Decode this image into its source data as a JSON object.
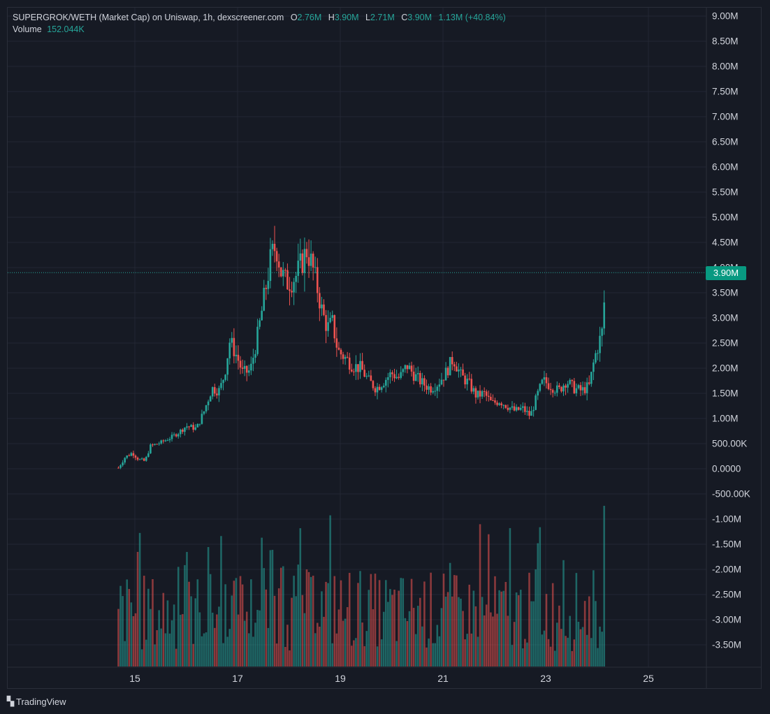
{
  "header": {
    "symbol": "SUPERGROK/WETH (Market Cap) on Uniswap, 1h, dexscreener.com",
    "o_label": "O",
    "o_value": "2.76M",
    "h_label": "H",
    "h_value": "3.90M",
    "l_label": "L",
    "l_value": "2.71M",
    "c_label": "C",
    "c_value": "3.90M",
    "change": "1.13M (+40.84%)",
    "volume_label": "Volume",
    "volume_value": "152.044K"
  },
  "price_tag": "3.90M",
  "footer": {
    "brand": "TradingView"
  },
  "colors": {
    "up": "#26a69a",
    "down": "#ef5350",
    "bg": "#161a24",
    "grid": "#232733",
    "text": "#d1d4dc",
    "tag": "#089981"
  },
  "chart_data": {
    "type": "candlestick",
    "x_ticks": [
      "15",
      "17",
      "19",
      "21",
      "23",
      "25"
    ],
    "y_ticks": [
      "9.00M",
      "8.50M",
      "8.00M",
      "7.50M",
      "7.00M",
      "6.50M",
      "6.00M",
      "5.50M",
      "5.00M",
      "4.50M",
      "4.00M",
      "3.50M",
      "3.00M",
      "2.50M",
      "2.00M",
      "1.50M",
      "1.00M",
      "500.00K",
      "0.0000",
      "-500.00K",
      "-1.00M",
      "-1.50M",
      "-2.00M",
      "-2.50M",
      "-3.00M",
      "-3.50M"
    ],
    "y_values": [
      9.0,
      8.5,
      8.0,
      7.5,
      7.0,
      6.5,
      6.0,
      5.5,
      5.0,
      4.5,
      4.0,
      3.5,
      3.0,
      2.5,
      2.0,
      1.5,
      1.0,
      0.5,
      0.0,
      -0.5,
      -1.0,
      -1.5,
      -2.0,
      -2.5,
      -3.0,
      -3.5
    ],
    "x_domain": [
      14.5,
      25.5
    ],
    "y_domain": [
      -3.9,
      9.2
    ],
    "last_price": 3.9,
    "close_path": [
      [
        14.68,
        0.02
      ],
      [
        14.8,
        0.22
      ],
      [
        14.95,
        0.32
      ],
      [
        15.08,
        0.18
      ],
      [
        15.2,
        0.15
      ],
      [
        15.3,
        0.45
      ],
      [
        15.5,
        0.52
      ],
      [
        15.7,
        0.62
      ],
      [
        15.85,
        0.72
      ],
      [
        16.0,
        0.85
      ],
      [
        16.2,
        0.8
      ],
      [
        16.35,
        1.15
      ],
      [
        16.5,
        1.6
      ],
      [
        16.65,
        1.55
      ],
      [
        16.75,
        1.9
      ],
      [
        16.85,
        2.55
      ],
      [
        17.0,
        2.2
      ],
      [
        17.1,
        1.9
      ],
      [
        17.25,
        1.95
      ],
      [
        17.4,
        2.7
      ],
      [
        17.55,
        3.6
      ],
      [
        17.65,
        4.2
      ],
      [
        17.75,
        4.45
      ],
      [
        17.85,
        3.9
      ],
      [
        17.95,
        3.7
      ],
      [
        18.05,
        3.75
      ],
      [
        18.15,
        3.85
      ],
      [
        18.25,
        4.1
      ],
      [
        18.35,
        4.35
      ],
      [
        18.45,
        4.05
      ],
      [
        18.55,
        3.6
      ],
      [
        18.65,
        3.1
      ],
      [
        18.75,
        2.8
      ],
      [
        18.85,
        2.9
      ],
      [
        18.95,
        2.35
      ],
      [
        19.1,
        2.2
      ],
      [
        19.25,
        2.05
      ],
      [
        19.4,
        2.0
      ],
      [
        19.55,
        1.75
      ],
      [
        19.7,
        1.6
      ],
      [
        19.85,
        1.75
      ],
      [
        20.0,
        1.9
      ],
      [
        20.15,
        1.8
      ],
      [
        20.3,
        2.05
      ],
      [
        20.45,
        1.85
      ],
      [
        20.6,
        1.7
      ],
      [
        20.75,
        1.6
      ],
      [
        20.9,
        1.7
      ],
      [
        21.05,
        1.9
      ],
      [
        21.2,
        2.2
      ],
      [
        21.35,
        1.85
      ],
      [
        21.5,
        1.7
      ],
      [
        21.65,
        1.45
      ],
      [
        21.8,
        1.5
      ],
      [
        21.95,
        1.3
      ],
      [
        22.1,
        1.35
      ],
      [
        22.25,
        1.25
      ],
      [
        22.4,
        1.15
      ],
      [
        22.55,
        1.2
      ],
      [
        22.7,
        1.05
      ],
      [
        22.85,
        1.5
      ],
      [
        22.95,
        1.75
      ],
      [
        23.1,
        1.65
      ],
      [
        23.25,
        1.55
      ],
      [
        23.4,
        1.75
      ],
      [
        23.55,
        1.6
      ],
      [
        23.7,
        1.55
      ],
      [
        23.85,
        1.65
      ],
      [
        23.95,
        2.2
      ],
      [
        24.05,
        2.55
      ],
      [
        24.12,
        2.8
      ],
      [
        24.16,
        3.9
      ]
    ],
    "volume_note": "volume histogram, relative heights"
  }
}
